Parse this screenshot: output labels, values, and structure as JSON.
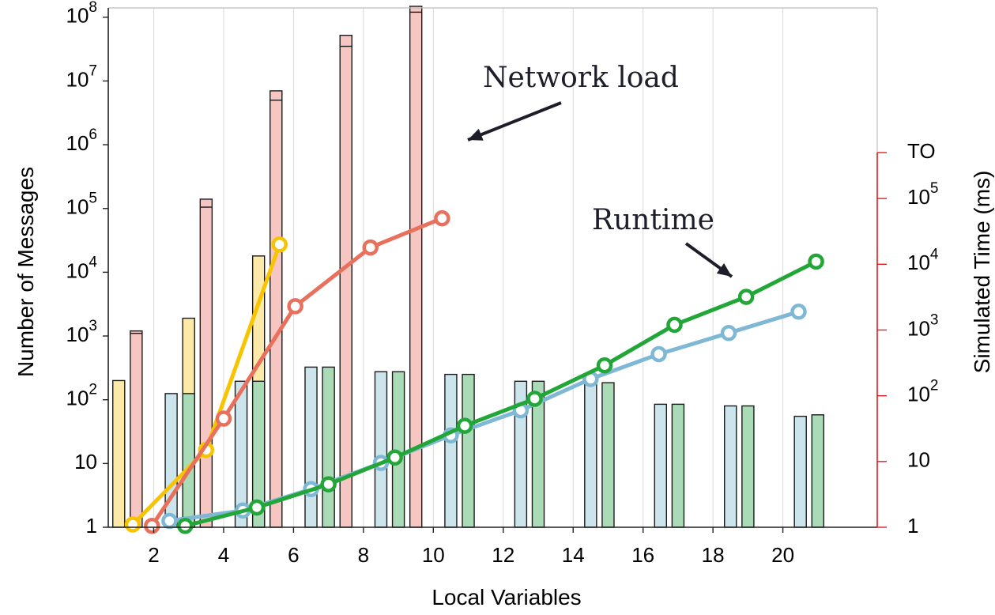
{
  "chart_data": {
    "type": "bar",
    "xlabel": "Local Variables",
    "ylabel": "Number of Messages",
    "y2label": "Simulated Time (ms)",
    "x_ticks": [
      "2",
      "4",
      "6",
      "8",
      "10",
      "12",
      "14",
      "16",
      "18",
      "20"
    ],
    "y_ticks": [
      "1",
      "10",
      "10^2",
      "10^3",
      "10^4",
      "10^5",
      "10^6",
      "10^7",
      "10^8"
    ],
    "y2_ticks": [
      "1",
      "10",
      "10^2",
      "10^3",
      "10^4",
      "10^5",
      "TO"
    ],
    "y_scale": "log",
    "ylim": [
      1,
      140000000
    ],
    "y2lim": [
      1,
      500000
    ],
    "y2_timeout_value": 500000,
    "x_range": [
      0.7,
      22.7
    ],
    "grid": "vertical lines at each local variable count",
    "colors": {
      "yellow_fill": "#fde9a8",
      "yellow_line": "#f8c400",
      "salmon_fill": "#f6c7c2",
      "salmon_line": "#e8705c",
      "blue_fill": "#cce4ec",
      "blue_line": "#7fb8d4",
      "green_fill": "#a9dbb6",
      "green_line": "#23a638",
      "right_axis": "#e02020"
    },
    "bar_series": [
      {
        "key": "yellow",
        "offset": -1.0,
        "fill": "yellow_fill",
        "points": [
          {
            "x": 2,
            "v": 200
          },
          {
            "x": 4,
            "v": 1900
          },
          {
            "x": 6,
            "v": 18000
          }
        ]
      },
      {
        "key": "salmon",
        "offset": -0.5,
        "fill": "salmon_fill",
        "points": [
          {
            "x": 2,
            "v": 1100,
            "v2": 1200
          },
          {
            "x": 4,
            "v": 105000,
            "v2": 140000
          },
          {
            "x": 6,
            "v": 5000000,
            "v2": 7000000
          },
          {
            "x": 8,
            "v": 35000000,
            "v2": 52000000
          },
          {
            "x": 10,
            "v": 120000000,
            "v2": 160000000
          }
        ]
      },
      {
        "key": "blue",
        "offset": 0.5,
        "fill": "blue_fill",
        "points": [
          {
            "x": 2,
            "v": 125
          },
          {
            "x": 4,
            "v": 195
          },
          {
            "x": 6,
            "v": 325
          },
          {
            "x": 8,
            "v": 275
          },
          {
            "x": 10,
            "v": 250
          },
          {
            "x": 12,
            "v": 195
          },
          {
            "x": 14,
            "v": 185
          },
          {
            "x": 16,
            "v": 85
          },
          {
            "x": 18,
            "v": 80
          },
          {
            "x": 20,
            "v": 55
          }
        ]
      },
      {
        "key": "green",
        "offset": 1.0,
        "fill": "green_fill",
        "points": [
          {
            "x": 2,
            "v": 125
          },
          {
            "x": 4,
            "v": 195
          },
          {
            "x": 6,
            "v": 325
          },
          {
            "x": 8,
            "v": 275
          },
          {
            "x": 10,
            "v": 250
          },
          {
            "x": 12,
            "v": 195
          },
          {
            "x": 14,
            "v": 185
          },
          {
            "x": 16,
            "v": 85
          },
          {
            "x": 18,
            "v": 80
          },
          {
            "x": 20,
            "v": 58
          }
        ]
      }
    ],
    "line_series": [
      {
        "key": "yellow",
        "color": "yellow_line",
        "points": [
          {
            "x": 1.4,
            "v": 1.1
          },
          {
            "x": 3.5,
            "v": 15
          },
          {
            "x": 5.6,
            "v": 20000
          }
        ]
      },
      {
        "key": "salmon",
        "color": "salmon_line",
        "points": [
          {
            "x": 1.95,
            "v": 1.05
          },
          {
            "x": 4.0,
            "v": 45
          },
          {
            "x": 6.05,
            "v": 2300
          },
          {
            "x": 8.2,
            "v": 18000
          },
          {
            "x": 10.25,
            "v": 50000
          }
        ]
      },
      {
        "key": "blue",
        "color": "blue_line",
        "points": [
          {
            "x": 2.45,
            "v": 1.25
          },
          {
            "x": 4.55,
            "v": 1.8
          },
          {
            "x": 6.5,
            "v": 3.8
          },
          {
            "x": 8.5,
            "v": 9.5
          },
          {
            "x": 10.5,
            "v": 25
          },
          {
            "x": 12.5,
            "v": 60
          },
          {
            "x": 14.5,
            "v": 180
          },
          {
            "x": 16.45,
            "v": 430
          },
          {
            "x": 18.45,
            "v": 900
          },
          {
            "x": 20.45,
            "v": 1900
          }
        ]
      },
      {
        "key": "green",
        "color": "green_line",
        "points": [
          {
            "x": 2.9,
            "v": 1.05
          },
          {
            "x": 4.95,
            "v": 2.0
          },
          {
            "x": 7.0,
            "v": 4.5
          },
          {
            "x": 8.9,
            "v": 11.5
          },
          {
            "x": 10.9,
            "v": 35
          },
          {
            "x": 12.9,
            "v": 90
          },
          {
            "x": 14.9,
            "v": 290
          },
          {
            "x": 16.9,
            "v": 1200
          },
          {
            "x": 18.95,
            "v": 3200
          },
          {
            "x": 20.95,
            "v": 11000
          }
        ]
      }
    ],
    "annotations": [
      {
        "text": "Network load",
        "x": 10.0,
        "y": 5000000
      },
      {
        "text": "Runtime",
        "x": 15.9,
        "y": 120000
      }
    ]
  }
}
